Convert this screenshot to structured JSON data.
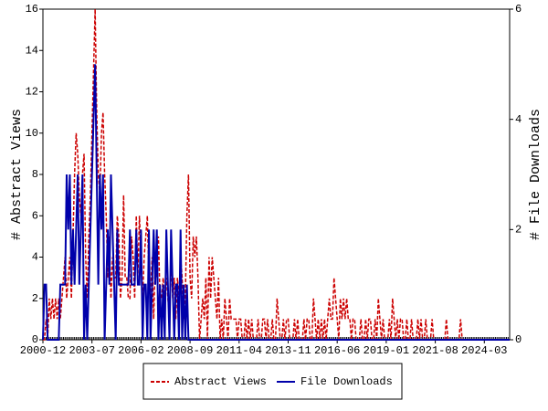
{
  "chart_data": {
    "type": "line",
    "ylabel": "# Abstract Views",
    "y2label": "# File Downloads",
    "x": [
      "2000-12",
      "2001-01",
      "2001-02",
      "2001-03",
      "2001-04",
      "2001-05",
      "2001-06",
      "2001-07",
      "2001-08",
      "2001-09",
      "2001-10",
      "2001-11",
      "2001-12",
      "2002-01",
      "2002-02",
      "2002-03",
      "2002-04",
      "2002-05",
      "2002-06",
      "2002-07",
      "2002-08",
      "2002-09",
      "2002-10",
      "2002-11",
      "2002-12",
      "2003-01",
      "2003-02",
      "2003-03",
      "2003-04",
      "2003-05",
      "2003-06",
      "2003-07",
      "2003-08",
      "2003-09",
      "2003-10",
      "2003-11",
      "2003-12",
      "2004-01",
      "2004-02",
      "2004-03",
      "2004-04",
      "2004-05",
      "2004-06",
      "2004-07",
      "2004-08",
      "2004-09",
      "2004-10",
      "2004-11",
      "2004-12",
      "2005-01",
      "2005-02",
      "2005-03",
      "2005-04",
      "2005-05",
      "2005-06",
      "2005-07",
      "2005-08",
      "2005-09",
      "2005-10",
      "2005-11",
      "2005-12",
      "2006-01",
      "2006-02",
      "2006-03",
      "2006-04",
      "2006-05",
      "2006-06",
      "2006-07",
      "2006-08",
      "2006-09",
      "2006-10",
      "2006-11",
      "2006-12",
      "2007-01",
      "2007-02",
      "2007-03",
      "2007-04",
      "2007-05",
      "2007-06",
      "2007-07",
      "2007-08",
      "2007-09",
      "2007-10",
      "2007-11",
      "2007-12",
      "2008-01",
      "2008-02",
      "2008-03",
      "2008-04",
      "2008-05",
      "2008-06",
      "2008-07",
      "2008-08",
      "2008-09",
      "2008-10",
      "2008-11",
      "2008-12",
      "2009-01",
      "2009-02",
      "2009-03",
      "2009-04",
      "2009-05",
      "2009-06",
      "2009-07",
      "2009-08",
      "2009-09",
      "2009-10",
      "2009-11",
      "2009-12",
      "2010-01",
      "2010-02",
      "2010-03",
      "2010-04",
      "2010-05",
      "2010-06",
      "2010-07",
      "2010-08",
      "2010-09",
      "2010-10",
      "2010-11",
      "2010-12",
      "2011-01",
      "2011-02",
      "2011-03",
      "2011-04",
      "2011-05",
      "2011-06",
      "2011-07",
      "2011-08",
      "2011-09",
      "2011-10",
      "2011-11",
      "2011-12",
      "2012-01",
      "2012-02",
      "2012-03",
      "2012-04",
      "2012-05",
      "2012-06",
      "2012-07",
      "2012-08",
      "2012-09",
      "2012-10",
      "2012-11",
      "2012-12",
      "2013-01",
      "2013-02",
      "2013-03",
      "2013-04",
      "2013-05",
      "2013-06",
      "2013-07",
      "2013-08",
      "2013-09",
      "2013-10",
      "2013-11",
      "2013-12",
      "2014-01",
      "2014-02",
      "2014-03",
      "2014-04",
      "2014-05",
      "2014-06",
      "2014-07",
      "2014-08",
      "2014-09",
      "2014-10",
      "2014-11",
      "2014-12",
      "2015-01",
      "2015-02",
      "2015-03",
      "2015-04",
      "2015-05",
      "2015-06",
      "2015-07",
      "2015-08",
      "2015-09",
      "2015-10",
      "2015-11",
      "2015-12",
      "2016-01",
      "2016-02",
      "2016-03",
      "2016-04",
      "2016-05",
      "2016-06",
      "2016-07",
      "2016-08",
      "2016-09",
      "2016-10",
      "2016-11",
      "2016-12",
      "2017-01",
      "2017-02",
      "2017-03",
      "2017-04",
      "2017-05",
      "2017-06",
      "2017-07",
      "2017-08",
      "2017-09",
      "2017-10",
      "2017-11",
      "2017-12",
      "2018-01",
      "2018-02",
      "2018-03",
      "2018-04",
      "2018-05",
      "2018-06",
      "2018-07",
      "2018-08",
      "2018-09",
      "2018-10",
      "2018-11",
      "2018-12",
      "2019-01",
      "2019-02",
      "2019-03",
      "2019-04",
      "2019-05",
      "2019-06",
      "2019-07",
      "2019-08",
      "2019-09",
      "2019-10",
      "2019-11",
      "2019-12",
      "2020-01",
      "2020-02",
      "2020-03",
      "2020-04",
      "2020-05",
      "2020-06",
      "2020-07",
      "2020-08",
      "2020-09",
      "2020-10",
      "2020-11",
      "2020-12",
      "2021-01",
      "2021-02",
      "2021-03",
      "2021-04",
      "2021-05",
      "2021-06",
      "2021-07",
      "2021-08",
      "2021-09",
      "2021-10",
      "2021-11",
      "2021-12",
      "2022-01",
      "2022-02",
      "2022-03",
      "2022-04",
      "2022-05",
      "2022-06",
      "2022-07",
      "2022-08",
      "2022-09",
      "2022-10",
      "2022-11",
      "2022-12",
      "2023-01",
      "2023-02",
      "2023-03",
      "2023-04",
      "2023-05",
      "2023-06",
      "2023-07",
      "2023-08",
      "2023-09",
      "2023-10",
      "2023-11",
      "2023-12",
      "2024-01",
      "2024-02",
      "2024-03",
      "2024-04",
      "2024-05",
      "2024-06",
      "2024-07",
      "2024-08",
      "2024-09",
      "2024-10",
      "2024-11",
      "2024-12",
      "2025-01",
      "2025-02",
      "2025-03",
      "2025-04",
      "2025-05",
      "2025-06",
      "2025-07"
    ],
    "xticks": [
      "2000-12",
      "2003-07",
      "2006-02",
      "2008-09",
      "2011-04",
      "2013-11",
      "2016-06",
      "2019-01",
      "2021-08",
      "2024-03"
    ],
    "ylim": [
      0,
      16
    ],
    "yticks": [
      0,
      2,
      4,
      6,
      8,
      10,
      12,
      14,
      16
    ],
    "y2lim": [
      0,
      6
    ],
    "y2ticks": [
      0,
      2,
      4,
      6
    ],
    "legend": "bottom",
    "series": [
      {
        "name": "Abstract Views",
        "color": "#cc0000",
        "line_style": "dashed",
        "values": [
          0,
          0,
          1,
          0,
          2,
          1,
          2,
          1,
          2,
          1,
          2,
          1,
          2,
          3,
          4,
          2,
          3,
          4,
          2,
          5,
          8,
          10,
          9,
          7,
          6,
          8,
          9,
          4,
          2,
          5,
          7,
          10,
          13,
          16,
          11,
          8,
          7,
          10,
          11,
          8,
          6,
          3,
          5,
          2,
          4,
          3,
          3,
          6,
          5,
          2,
          3,
          7,
          3,
          3,
          2,
          2,
          5,
          4,
          2,
          6,
          3,
          6,
          4,
          2,
          4,
          5,
          6,
          3,
          2,
          4,
          1,
          4,
          3,
          5,
          2,
          2,
          3,
          2,
          3,
          2,
          1,
          4,
          2,
          3,
          1,
          3,
          2,
          4,
          3,
          1,
          2,
          6,
          8,
          3,
          2,
          5,
          4,
          5,
          3,
          0,
          1,
          2,
          1,
          3,
          0,
          4,
          2,
          4,
          3,
          2,
          1,
          3,
          0,
          1,
          0,
          2,
          1,
          0,
          2,
          1,
          1,
          1,
          1,
          0,
          1,
          1,
          0,
          0,
          1,
          0,
          1,
          0,
          1,
          0,
          0,
          0,
          1,
          0,
          0,
          1,
          1,
          0,
          1,
          0,
          0,
          1,
          0,
          0,
          2,
          1,
          0,
          0,
          1,
          0,
          1,
          1,
          0,
          0,
          0,
          1,
          0,
          1,
          0,
          0,
          0,
          1,
          0,
          1,
          1,
          0,
          0,
          2,
          1,
          0,
          1,
          0,
          1,
          0,
          1,
          0,
          1,
          2,
          1,
          1,
          3,
          2,
          1,
          0,
          2,
          1,
          2,
          1,
          2,
          1,
          1,
          0,
          1,
          1,
          0,
          0,
          0,
          1,
          0,
          0,
          1,
          0,
          1,
          1,
          0,
          0,
          1,
          0,
          2,
          1,
          0,
          1,
          0,
          0,
          0,
          1,
          0,
          2,
          1,
          0,
          1,
          0,
          1,
          1,
          0,
          0,
          1,
          0,
          0,
          1,
          0,
          0,
          0,
          1,
          0,
          1,
          0,
          0,
          1,
          0,
          0,
          0,
          1,
          0,
          0,
          0,
          0,
          0,
          0,
          0,
          0,
          1,
          0,
          0,
          0,
          0,
          0,
          0,
          0,
          0,
          1,
          0,
          0,
          0,
          0,
          0,
          0,
          0,
          0,
          0,
          0,
          0,
          0,
          0,
          0,
          0,
          0,
          0,
          0,
          0,
          0,
          0,
          0,
          0,
          0,
          0,
          0,
          0,
          0,
          0,
          0,
          0
        ]
      },
      {
        "name": "File Downloads",
        "color": "#0000aa",
        "line_style": "solid",
        "axis": "y2",
        "values": [
          0,
          1,
          1,
          0,
          0,
          0,
          0,
          0,
          0,
          0,
          0,
          1,
          1,
          1,
          1,
          3,
          2,
          3,
          1,
          2,
          1,
          2,
          3,
          1,
          2,
          3,
          0,
          1,
          0,
          1,
          2,
          3,
          4,
          5,
          3,
          1,
          3,
          2,
          3,
          0,
          1,
          2,
          1,
          3,
          2,
          1,
          0,
          2,
          1,
          1,
          1,
          1,
          1,
          1,
          1,
          2,
          1,
          1,
          1,
          2,
          1,
          1,
          2,
          0,
          1,
          1,
          0,
          2,
          0,
          1,
          2,
          1,
          2,
          0,
          1,
          0,
          1,
          0,
          2,
          1,
          0,
          2,
          1,
          0,
          1,
          1,
          0,
          2,
          0,
          1,
          0,
          1,
          0,
          0,
          0,
          0,
          0,
          0,
          0,
          0,
          0,
          0,
          0,
          0,
          0,
          0,
          0,
          0,
          0,
          0,
          0,
          0,
          0,
          0,
          0,
          0,
          0,
          0,
          0,
          0,
          0,
          0,
          0,
          0,
          0,
          0,
          0,
          0,
          0,
          0,
          0,
          0,
          0,
          0,
          0,
          0,
          0,
          0,
          0,
          0,
          0,
          0,
          0,
          0,
          0,
          0,
          0,
          0,
          0,
          0,
          0,
          0,
          0,
          0,
          0,
          0,
          0,
          0,
          0,
          0,
          0,
          0,
          0,
          0,
          0,
          0,
          0,
          0,
          0,
          0,
          0,
          0,
          0,
          0,
          0,
          0,
          0,
          0,
          0,
          0,
          0,
          0,
          0,
          0,
          0,
          0,
          0,
          0,
          0,
          0,
          0,
          0,
          0,
          0,
          0,
          0,
          0,
          0,
          0,
          0,
          0,
          0,
          0,
          0,
          0,
          0,
          0,
          0,
          0,
          0,
          0,
          0,
          0,
          0,
          0,
          0,
          0,
          0,
          0,
          0,
          0,
          0,
          0,
          0,
          0,
          0,
          0,
          0,
          0,
          0,
          0,
          0,
          0,
          0,
          0,
          0,
          0,
          0,
          0,
          0,
          0,
          0,
          0,
          0,
          0,
          0,
          0,
          0,
          0,
          0,
          0,
          0,
          0,
          0,
          0,
          0,
          0,
          0,
          0,
          0,
          0,
          0,
          0,
          0,
          0,
          0,
          0,
          0,
          0,
          0,
          0,
          0,
          0,
          0,
          0,
          0,
          0,
          0,
          0,
          0,
          0,
          0,
          0,
          0,
          0,
          0,
          0,
          0,
          0,
          0,
          0,
          0,
          0,
          0,
          0,
          0
        ]
      }
    ]
  }
}
